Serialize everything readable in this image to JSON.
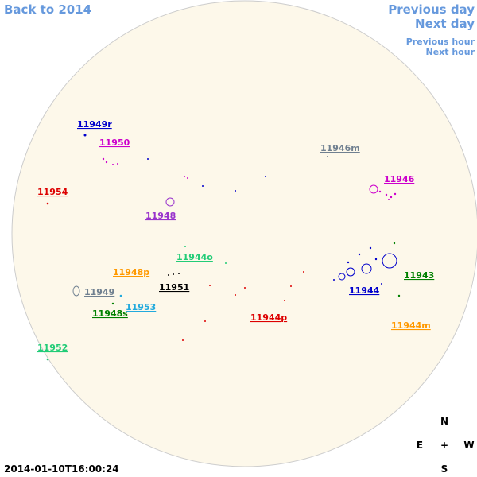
{
  "header": {
    "back": "Back to 2014",
    "previous_day": "Previous day",
    "next_day": "Next day",
    "previous_hour": "Previous hour",
    "next_hour": "Next hour"
  },
  "regions": [
    {
      "label": "11949r",
      "color": "#0000cc"
    },
    {
      "label": "11950",
      "color": "#cc00cc"
    },
    {
      "label": "11946m",
      "color": "#708090"
    },
    {
      "label": "11946",
      "color": "#cc00cc"
    },
    {
      "label": "11954",
      "color": "#dd0000"
    },
    {
      "label": "11948",
      "color": "#9933cc"
    },
    {
      "label": "11944o",
      "color": "#22cc77"
    },
    {
      "label": "11948p",
      "color": "#ff9900"
    },
    {
      "label": "11951",
      "color": "#000000"
    },
    {
      "label": "11949",
      "color": "#708090"
    },
    {
      "label": "11943",
      "color": "#008000"
    },
    {
      "label": "11944",
      "color": "#0000cc"
    },
    {
      "label": "11953",
      "color": "#22aadd"
    },
    {
      "label": "11948s",
      "color": "#008000"
    },
    {
      "label": "11944p",
      "color": "#dd0000"
    },
    {
      "label": "11944m",
      "color": "#ff9900"
    },
    {
      "label": "11952",
      "color": "#22cc77"
    }
  ],
  "timestamp": "2014-01-10T16:00:24",
  "compass": {
    "north": "N",
    "east": "E",
    "center": "+",
    "west": "W",
    "south": "S"
  }
}
